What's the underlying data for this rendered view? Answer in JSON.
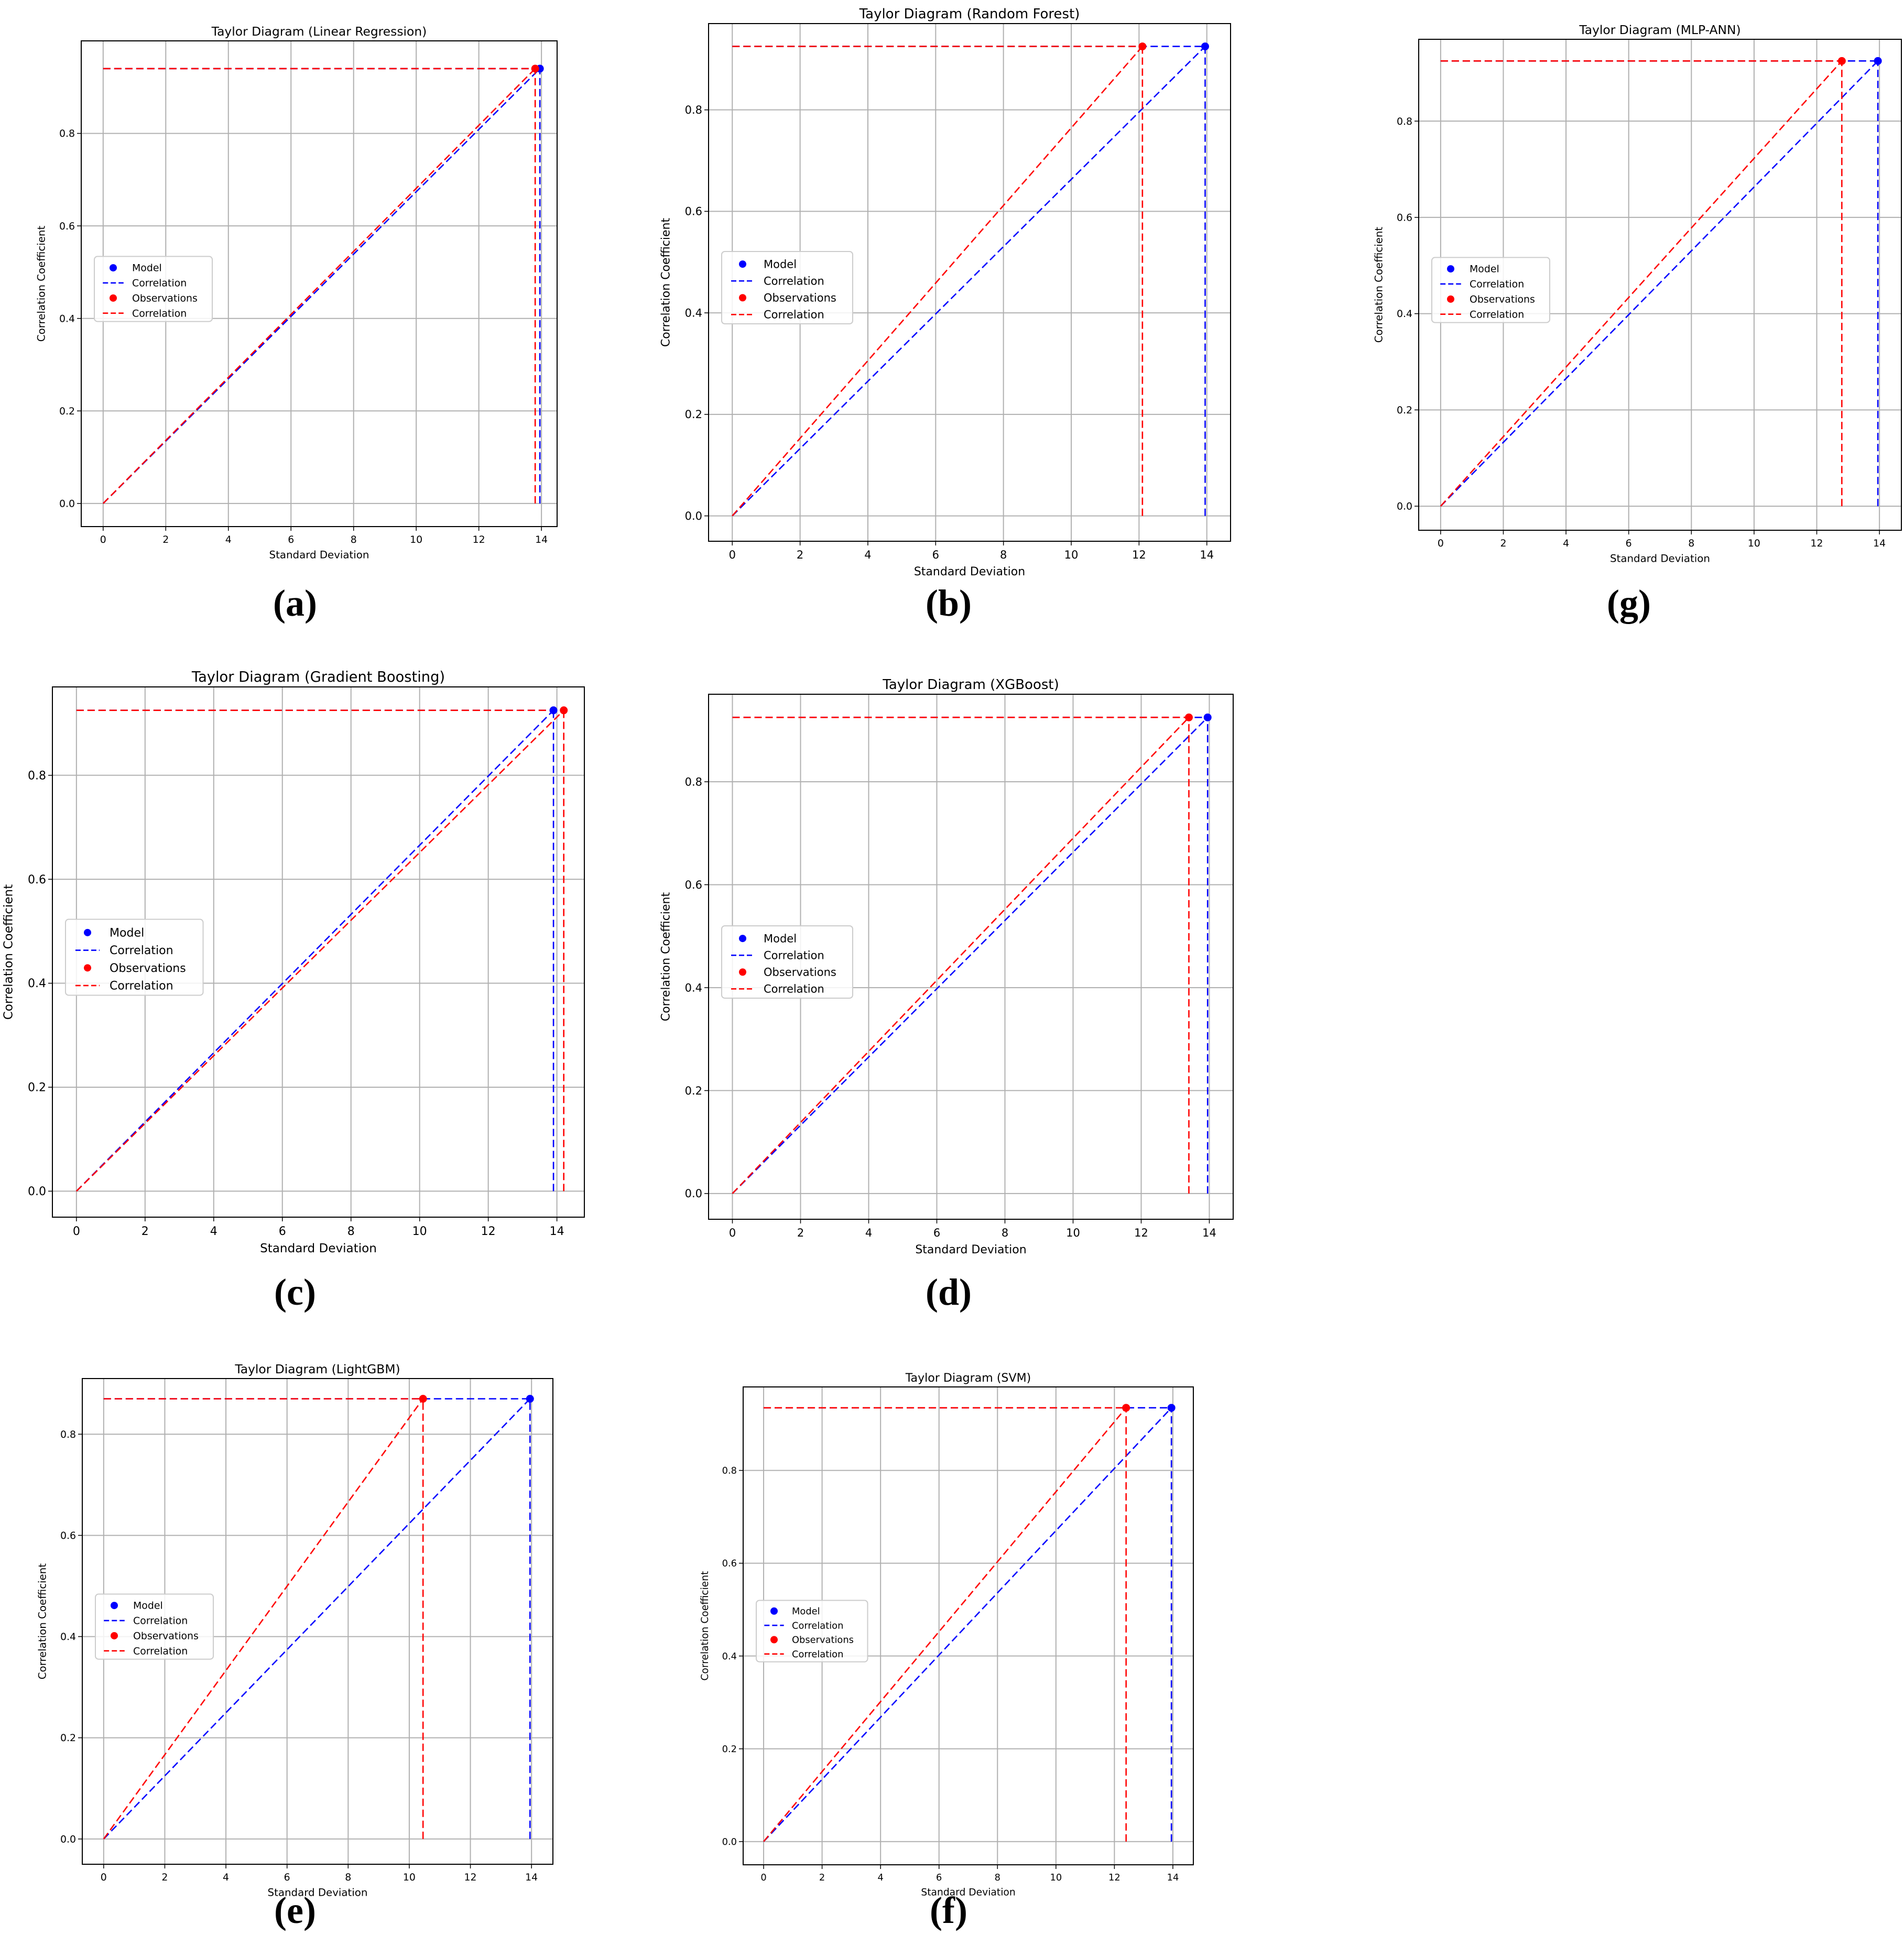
{
  "legend_labels": [
    "Model",
    "Correlation",
    "Observations",
    "Correlation"
  ],
  "colors": {
    "model": "#0000ff",
    "observations": "#ff0000",
    "grid": "#b0b0b0"
  },
  "panel_labels": [
    "(a)",
    "(b)",
    "(g)",
    "(c)",
    "(d)",
    "(e)",
    "(f)"
  ],
  "chart_data": [
    {
      "type": "scatter",
      "title": "Taylor Diagram (Linear Regression)",
      "xlabel": "Standard Deviation",
      "ylabel": "Correlation Coefficient",
      "xlim": [
        -0.7,
        14.5
      ],
      "ylim": [
        -0.05,
        1.0
      ],
      "xticks": [
        "0",
        "2",
        "4",
        "6",
        "8",
        "10",
        "12",
        "14"
      ],
      "yticks": [
        "0.0",
        "0.2",
        "0.4",
        "0.6",
        "0.8"
      ],
      "grid": true,
      "legend_position": "center-left",
      "series": [
        {
          "name": "Model",
          "x": 13.95,
          "y": 0.94
        },
        {
          "name": "Observations",
          "x": 13.8,
          "y": 0.94
        }
      ]
    },
    {
      "type": "scatter",
      "title": "Taylor Diagram (Random Forest)",
      "xlabel": "Standard Deviation",
      "ylabel": "Correlation Coefficient",
      "xlim": [
        -0.7,
        14.7
      ],
      "ylim": [
        -0.05,
        0.97
      ],
      "xticks": [
        "0",
        "2",
        "4",
        "6",
        "8",
        "10",
        "12",
        "14"
      ],
      "yticks": [
        "0.0",
        "0.2",
        "0.4",
        "0.6",
        "0.8"
      ],
      "grid": true,
      "legend_position": "center-left",
      "series": [
        {
          "name": "Model",
          "x": 13.95,
          "y": 0.925
        },
        {
          "name": "Observations",
          "x": 12.1,
          "y": 0.925
        }
      ]
    },
    {
      "type": "scatter",
      "title": "Taylor Diagram (MLP-ANN)",
      "xlabel": "Standard Deviation",
      "ylabel": "Correlation Coefficient",
      "xlim": [
        -0.7,
        14.7
      ],
      "ylim": [
        -0.05,
        0.97
      ],
      "xticks": [
        "0",
        "2",
        "4",
        "6",
        "8",
        "10",
        "12",
        "14"
      ],
      "yticks": [
        "0.0",
        "0.2",
        "0.4",
        "0.6",
        "0.8"
      ],
      "grid": true,
      "legend_position": "center-left",
      "series": [
        {
          "name": "Model",
          "x": 13.95,
          "y": 0.925
        },
        {
          "name": "Observations",
          "x": 12.8,
          "y": 0.925
        }
      ]
    },
    {
      "type": "scatter",
      "title": "Taylor Diagram (Gradient Boosting)",
      "xlabel": "Standard Deviation",
      "ylabel": "Correlation Coefficient",
      "xlim": [
        -0.7,
        14.8
      ],
      "ylim": [
        -0.05,
        0.97
      ],
      "xticks": [
        "0",
        "2",
        "4",
        "6",
        "8",
        "10",
        "12",
        "14"
      ],
      "yticks": [
        "0.0",
        "0.2",
        "0.4",
        "0.6",
        "0.8"
      ],
      "grid": true,
      "legend_position": "center-left",
      "series": [
        {
          "name": "Model",
          "x": 13.9,
          "y": 0.925
        },
        {
          "name": "Observations",
          "x": 14.2,
          "y": 0.925
        }
      ]
    },
    {
      "type": "scatter",
      "title": "Taylor Diagram (XGBoost)",
      "xlabel": "Standard Deviation",
      "ylabel": "Correlation Coefficient",
      "xlim": [
        -0.7,
        14.7
      ],
      "ylim": [
        -0.05,
        0.97
      ],
      "xticks": [
        "0",
        "2",
        "4",
        "6",
        "8",
        "10",
        "12",
        "14"
      ],
      "yticks": [
        "0.0",
        "0.2",
        "0.4",
        "0.6",
        "0.8"
      ],
      "grid": true,
      "legend_position": "center-left",
      "series": [
        {
          "name": "Model",
          "x": 13.95,
          "y": 0.925
        },
        {
          "name": "Observations",
          "x": 13.4,
          "y": 0.925
        }
      ]
    },
    {
      "type": "scatter",
      "title": "Taylor Diagram (LightGBM)",
      "xlabel": "Standard Deviation",
      "ylabel": "Correlation Coefficient",
      "xlim": [
        -0.7,
        14.7
      ],
      "ylim": [
        -0.05,
        0.91
      ],
      "xticks": [
        "0",
        "2",
        "4",
        "6",
        "8",
        "10",
        "12",
        "14"
      ],
      "yticks": [
        "0.0",
        "0.2",
        "0.4",
        "0.6",
        "0.8"
      ],
      "grid": true,
      "legend_position": "center-left",
      "series": [
        {
          "name": "Model",
          "x": 13.95,
          "y": 0.87
        },
        {
          "name": "Observations",
          "x": 10.45,
          "y": 0.87
        }
      ]
    },
    {
      "type": "scatter",
      "title": "Taylor Diagram (SVM)",
      "xlabel": "Standard Deviation",
      "ylabel": "Correlation Coefficient",
      "xlim": [
        -0.7,
        14.7
      ],
      "ylim": [
        -0.05,
        0.98
      ],
      "xticks": [
        "0",
        "2",
        "4",
        "6",
        "8",
        "10",
        "12",
        "14"
      ],
      "yticks": [
        "0.0",
        "0.2",
        "0.4",
        "0.6",
        "0.8"
      ],
      "grid": true,
      "legend_position": "center-left",
      "series": [
        {
          "name": "Model",
          "x": 13.95,
          "y": 0.935
        },
        {
          "name": "Observations",
          "x": 12.4,
          "y": 0.935
        }
      ]
    }
  ]
}
